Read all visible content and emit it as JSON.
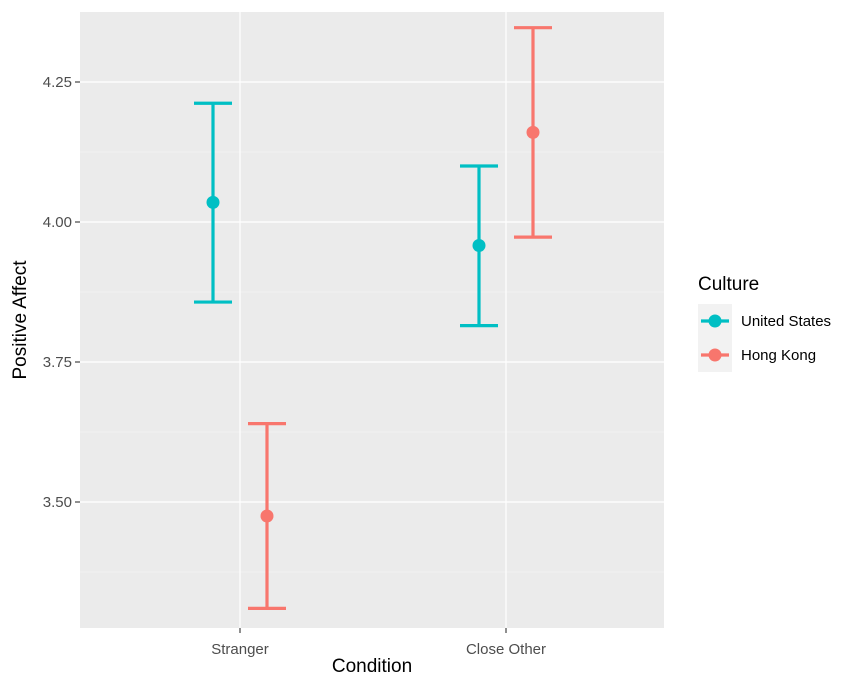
{
  "chart_data": {
    "type": "errorbar",
    "xlabel": "Condition",
    "ylabel": "Positive Affect",
    "categories": [
      "Stranger",
      "Close Other"
    ],
    "ylim": [
      3.275,
      4.375
    ],
    "yticks": [
      3.5,
      3.75,
      4.0,
      4.25
    ],
    "ytick_labels": [
      "3.50",
      "3.75",
      "4.00",
      "4.25"
    ],
    "grid": true,
    "legend": {
      "title": "Culture",
      "position": "right"
    },
    "series": [
      {
        "name": "United States",
        "color": "#00BFC4",
        "values": [
          4.035,
          3.958
        ],
        "lower": [
          3.857,
          3.815
        ],
        "upper": [
          4.212,
          4.1
        ]
      },
      {
        "name": "Hong Kong",
        "color": "#F8766D",
        "values": [
          3.475,
          4.16
        ],
        "lower": [
          3.31,
          3.973
        ],
        "upper": [
          3.64,
          4.347
        ]
      }
    ]
  }
}
